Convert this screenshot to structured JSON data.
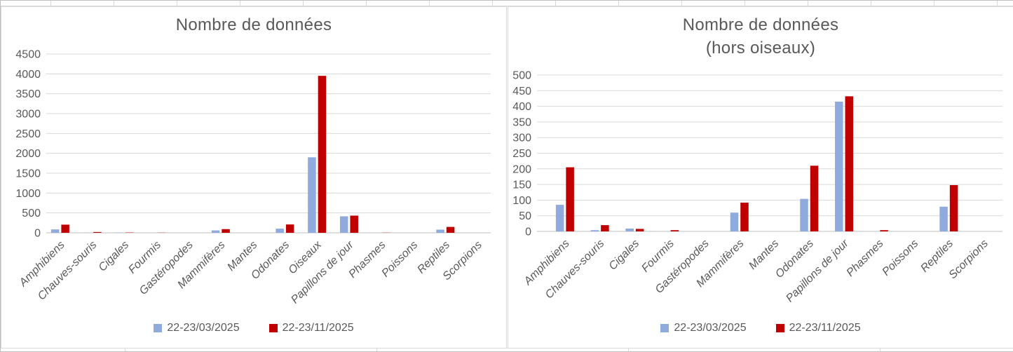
{
  "colors": {
    "series_blue": "#8FAADC",
    "series_red": "#C00000",
    "gridline": "#D9D9D9",
    "axis_line": "#BFBFBF",
    "text": "#595959",
    "panel_border": "#D9D9D9"
  },
  "chart_data": [
    {
      "type": "bar",
      "title_lines": [
        "Nombre de données"
      ],
      "xlabel": "",
      "ylabel": "",
      "ylim": [
        0,
        4500
      ],
      "ytick_step": 500,
      "grid": true,
      "legend_position": "bottom",
      "categories": [
        "Amphibiens",
        "Chauves-souris",
        "Cigales",
        "Fourmis",
        "Gastéropodes",
        "Mammifères",
        "Mantes",
        "Odonates",
        "Oiseaux",
        "Papillons de jour",
        "Phasmes",
        "Poissons",
        "Reptiles",
        "Scorpions"
      ],
      "series": [
        {
          "name": "22-23/03/2025",
          "color": "#8FAADC",
          "values": [
            85,
            4,
            9,
            0,
            0,
            60,
            0,
            104,
            1900,
            415,
            0,
            0,
            79,
            0
          ]
        },
        {
          "name": "22-23/11/2025",
          "color": "#C00000",
          "values": [
            205,
            20,
            8,
            4,
            0,
            92,
            0,
            210,
            3950,
            432,
            4,
            0,
            148,
            0
          ]
        }
      ]
    },
    {
      "type": "bar",
      "title_lines": [
        "Nombre de données",
        "(hors oiseaux)"
      ],
      "xlabel": "",
      "ylabel": "",
      "ylim": [
        0,
        500
      ],
      "ytick_step": 50,
      "grid": true,
      "legend_position": "bottom",
      "categories": [
        "Amphibiens",
        "Chauves-souris",
        "Cigales",
        "Fourmis",
        "Gastéropodes",
        "Mammifères",
        "Mantes",
        "Odonates",
        "Papillons de jour",
        "Phasmes",
        "Poissons",
        "Reptiles",
        "Scorpions"
      ],
      "series": [
        {
          "name": "22-23/03/2025",
          "color": "#8FAADC",
          "values": [
            85,
            4,
            9,
            0,
            0,
            60,
            0,
            104,
            415,
            0,
            0,
            79,
            0
          ]
        },
        {
          "name": "22-23/11/2025",
          "color": "#C00000",
          "values": [
            205,
            20,
            8,
            4,
            0,
            92,
            0,
            210,
            432,
            4,
            0,
            148,
            0
          ]
        }
      ]
    }
  ]
}
